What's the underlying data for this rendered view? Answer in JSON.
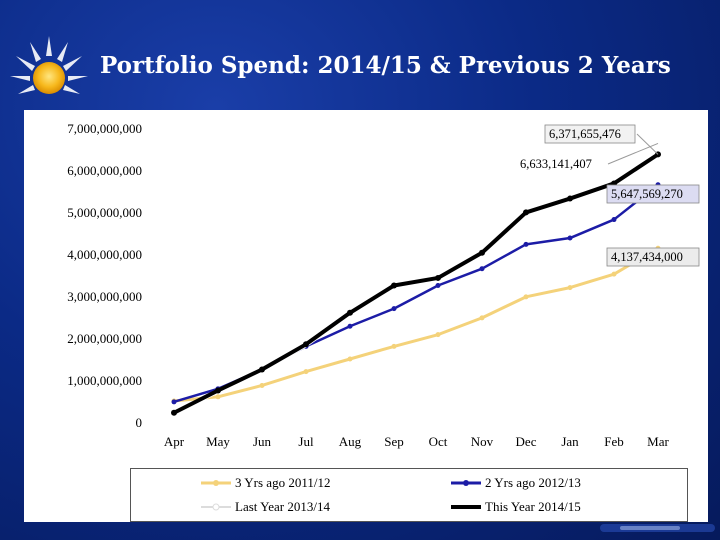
{
  "title": "Portfolio Spend: 2014/15 & Previous 2 Years",
  "chart_data": {
    "type": "line",
    "title": "Portfolio Spend: 2014/15 & Previous 2 Years",
    "categories": [
      "Apr",
      "May",
      "Jun",
      "Jul",
      "Aug",
      "Sep",
      "Oct",
      "Nov",
      "Dec",
      "Jan",
      "Feb",
      "Mar"
    ],
    "ylim": [
      0,
      7000000000
    ],
    "yticks": [
      {
        "value": 0,
        "label": "0"
      },
      {
        "value": 1000000000,
        "label": "1,000,000,000"
      },
      {
        "value": 2000000000,
        "label": "2,000,000,000"
      },
      {
        "value": 3000000000,
        "label": "3,000,000,000"
      },
      {
        "value": 4000000000,
        "label": "4,000,000,000"
      },
      {
        "value": 5000000000,
        "label": "5,000,000,000"
      },
      {
        "value": 6000000000,
        "label": "6,000,000,000"
      },
      {
        "value": 7000000000,
        "label": "7,000,000,000"
      }
    ],
    "series": [
      {
        "name": "3 Yrs ago 2011/12",
        "color": "#f4d27a",
        "values": [
          500000000,
          600000000,
          870000000,
          1200000000,
          1500000000,
          1800000000,
          2080000000,
          2480000000,
          2980000000,
          3200000000,
          3520000000,
          4137434000
        ]
      },
      {
        "name": "2 Yrs ago 2012/13",
        "color": "#1c1ca6",
        "values": [
          480000000,
          790000000,
          1250000000,
          1800000000,
          2280000000,
          2700000000,
          3250000000,
          3650000000,
          4230000000,
          4380000000,
          4820000000,
          5647569270
        ]
      },
      {
        "name": "Last Year 2013/14",
        "color": "#ffffff",
        "values": [
          200000000,
          700000000,
          1200000000,
          1800000000,
          2550000000,
          3200000000,
          3400000000,
          4000000000,
          4950000000,
          5300000000,
          5650000000,
          6633141407
        ]
      },
      {
        "name": "This Year 2014/15",
        "color": "#000000",
        "values": [
          220000000,
          750000000,
          1250000000,
          1850000000,
          2600000000,
          3250000000,
          3430000000,
          4030000000,
          4990000000,
          5320000000,
          5680000000,
          6371655476
        ]
      }
    ],
    "annotations": [
      {
        "text": "6,371,655,476",
        "series": "This Year 2014/15"
      },
      {
        "text": "6,633,141,407",
        "series": "Last Year 2013/14"
      },
      {
        "text": "5,647,569,270",
        "series": "2 Yrs ago 2012/13"
      },
      {
        "text": "4,137,434,000",
        "series": "3 Yrs ago 2011/12"
      }
    ],
    "legend": {
      "placement": "bottom",
      "items": [
        {
          "label": "3 Yrs ago 2011/12",
          "color": "#f4d27a"
        },
        {
          "label": "2 Yrs ago 2012/13",
          "color": "#1c1ca6"
        },
        {
          "label": "Last Year 2013/14",
          "color": "#ffffff"
        },
        {
          "label": "This Year 2014/15",
          "color": "#000000"
        }
      ]
    }
  }
}
